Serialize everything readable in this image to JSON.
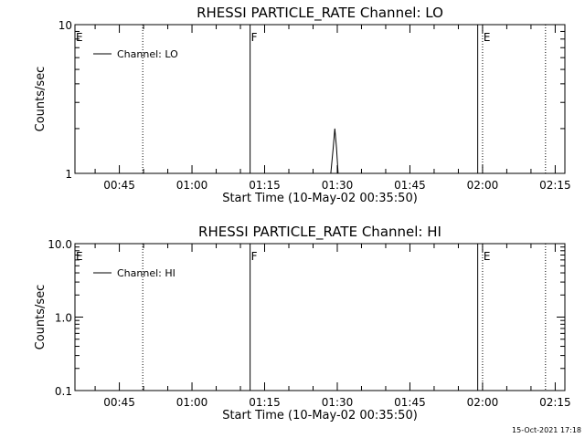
{
  "footer": {
    "timestamp": "15-Oct-2021 17:18"
  },
  "chart_data": [
    {
      "type": "line",
      "title": "RHESSI PARTICLE_RATE Channel: LO",
      "ylabel": "Counts/sec",
      "xlabel": "Start Time (10-May-02 00:35:50)",
      "yscale": "log",
      "ylim": [
        1,
        10
      ],
      "y_ticks": [
        "1",
        "10"
      ],
      "xlim": [
        "00:35:50",
        "02:17:00"
      ],
      "x_ticks": [
        "00:45",
        "01:00",
        "01:15",
        "01:30",
        "01:45",
        "02:00",
        "02:15"
      ],
      "legend": {
        "position": "top-left",
        "entries": [
          "Channel: LO"
        ]
      },
      "series": [
        {
          "name": "Channel: LO",
          "x": [
            "01:28:40",
            "01:29:10",
            "01:29:30",
            "01:29:50",
            "01:30:10"
          ],
          "y": [
            1,
            1.5,
            2.0,
            1.5,
            1
          ]
        }
      ],
      "markers": [
        {
          "label": "E",
          "time": "00:35:50",
          "style": "solid"
        },
        {
          "label": "",
          "time": "00:49:50",
          "style": "dotted"
        },
        {
          "label": "F",
          "time": "01:12:00",
          "style": "solid"
        },
        {
          "label": "",
          "time": "01:59:00",
          "style": "solid"
        },
        {
          "label": "E",
          "time": "02:00:00",
          "style": "dotted"
        },
        {
          "label": "",
          "time": "02:13:00",
          "style": "dotted"
        }
      ]
    },
    {
      "type": "line",
      "title": "RHESSI PARTICLE_RATE Channel: HI",
      "ylabel": "Counts/sec",
      "xlabel": "Start Time (10-May-02 00:35:50)",
      "yscale": "log",
      "ylim": [
        0.1,
        10
      ],
      "y_ticks": [
        "0.1",
        "1.0",
        "10.0"
      ],
      "xlim": [
        "00:35:50",
        "02:17:00"
      ],
      "x_ticks": [
        "00:45",
        "01:00",
        "01:15",
        "01:30",
        "01:45",
        "02:00",
        "02:15"
      ],
      "legend": {
        "position": "top-left",
        "entries": [
          "Channel: HI"
        ]
      },
      "series": [
        {
          "name": "Channel: HI",
          "x": [],
          "y": []
        }
      ],
      "markers": [
        {
          "label": "E",
          "time": "00:35:50",
          "style": "solid"
        },
        {
          "label": "",
          "time": "00:49:50",
          "style": "dotted"
        },
        {
          "label": "F",
          "time": "01:12:00",
          "style": "solid"
        },
        {
          "label": "",
          "time": "01:59:00",
          "style": "solid"
        },
        {
          "label": "E",
          "time": "02:00:00",
          "style": "dotted"
        },
        {
          "label": "",
          "time": "02:13:00",
          "style": "dotted"
        }
      ]
    }
  ]
}
